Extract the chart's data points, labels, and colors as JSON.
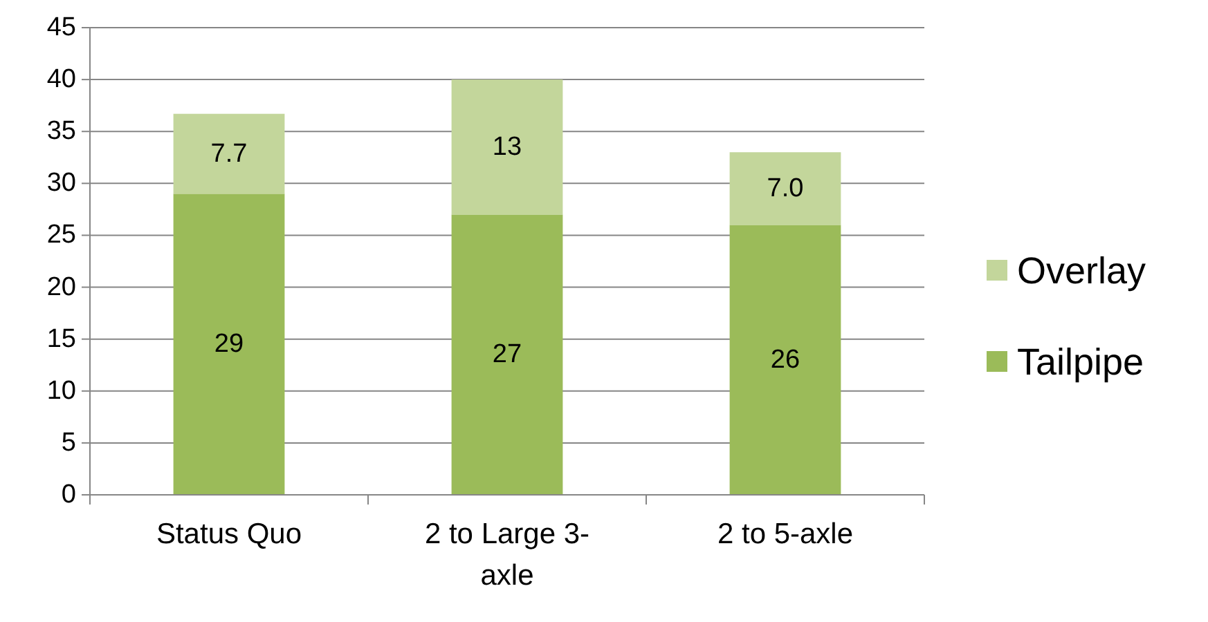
{
  "chart_data": {
    "type": "bar",
    "stacked": true,
    "categories": [
      "Status Quo",
      "2 to Large 3-axle",
      "2 to 5-axle"
    ],
    "series": [
      {
        "name": "Tailpipe",
        "color": "#9bbb59",
        "values": [
          29,
          27,
          26
        ],
        "value_labels": [
          "29",
          "27",
          "26"
        ]
      },
      {
        "name": "Overlay",
        "color": "#c3d69b",
        "values": [
          7.7,
          13,
          7.0
        ],
        "value_labels": [
          "7.7",
          "13",
          "7.0"
        ]
      }
    ],
    "ylim": [
      0,
      45
    ],
    "yticks": [
      0,
      5,
      10,
      15,
      20,
      25,
      30,
      35,
      40,
      45
    ],
    "grid": "y",
    "legend": "right"
  }
}
